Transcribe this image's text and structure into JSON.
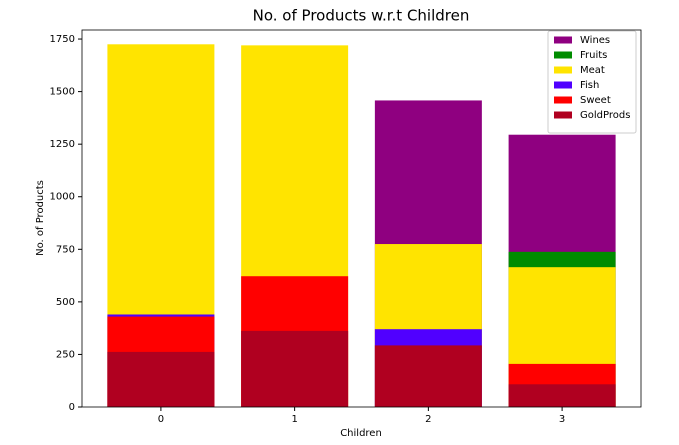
{
  "chart_data": {
    "type": "bar",
    "title": "No. of Products w.r.t Children",
    "xlabel": "Children",
    "ylabel": "No. of Products",
    "categories": [
      "0",
      "1",
      "2",
      "3"
    ],
    "series": [
      {
        "name": "Wines",
        "color": "#8f0080",
        "values": [
          null,
          null,
          1458,
          1295
        ]
      },
      {
        "name": "Fruits",
        "color": "#008c00",
        "values": [
          null,
          null,
          null,
          738
        ]
      },
      {
        "name": "Meat",
        "color": "#ffe400",
        "values": [
          1725,
          1720,
          775,
          665
        ]
      },
      {
        "name": "Fish",
        "color": "#5000ff",
        "values": [
          440,
          null,
          370,
          null
        ]
      },
      {
        "name": "Sweet",
        "color": "#ff0000",
        "values": [
          430,
          622,
          null,
          205
        ]
      },
      {
        "name": "GoldProds",
        "color": "#b00020",
        "values": [
          262,
          362,
          293,
          108
        ]
      }
    ],
    "ylim": [
      0,
      1793
    ],
    "yticks": [
      0,
      250,
      500,
      750,
      1000,
      1250,
      1500,
      1750
    ],
    "legend": "upper right"
  }
}
